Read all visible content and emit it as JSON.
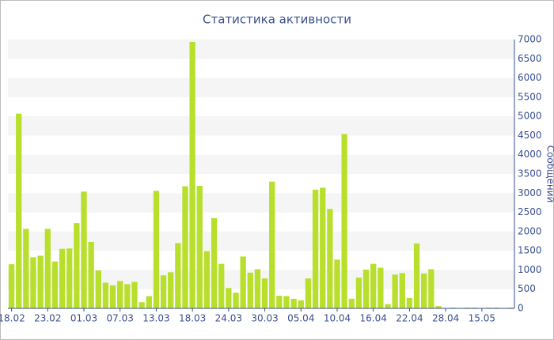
{
  "chart_data": {
    "type": "bar",
    "title": "Статистика активности",
    "y_label": "Сообщений",
    "categories": [
      "18.02",
      null,
      null,
      null,
      null,
      "23.02",
      null,
      null,
      null,
      null,
      "01.03",
      null,
      null,
      null,
      null,
      "07.03",
      null,
      null,
      null,
      null,
      "13.03",
      null,
      null,
      null,
      null,
      "18.03",
      null,
      null,
      null,
      null,
      "24.03",
      null,
      null,
      null,
      null,
      "30.03",
      null,
      null,
      null,
      null,
      "05.04",
      null,
      null,
      null,
      null,
      "10.04",
      null,
      null,
      null,
      null,
      "16.04",
      null,
      null,
      null,
      null,
      "22.04",
      null,
      null,
      null,
      null,
      "28.04",
      null,
      null,
      null,
      null,
      "15.05",
      null,
      null,
      null,
      null
    ],
    "values": [
      1150,
      5070,
      2070,
      1330,
      1370,
      2070,
      1220,
      1550,
      1560,
      2220,
      3040,
      1730,
      990,
      670,
      600,
      710,
      630,
      690,
      160,
      320,
      3060,
      860,
      940,
      1700,
      3180,
      6940,
      3190,
      1490,
      2350,
      1160,
      530,
      410,
      1350,
      930,
      1020,
      780,
      3300,
      330,
      320,
      250,
      210,
      780,
      3090,
      3140,
      2590,
      1270,
      4540,
      250,
      800,
      1010,
      1160,
      1060,
      110,
      880,
      920,
      270,
      1690,
      910,
      1020,
      60,
      10,
      20,
      10,
      20,
      20,
      10,
      20,
      20,
      10,
      20
    ],
    "color": "#b8df2c",
    "ylim": [
      0,
      7000
    ],
    "yticks": [
      0,
      500,
      1000,
      1500,
      2000,
      2500,
      3000,
      3500,
      4000,
      4500,
      5000,
      5500,
      6000,
      6500,
      7000
    ],
    "grid": true
  }
}
